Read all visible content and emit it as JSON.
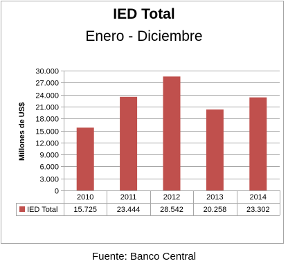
{
  "header": {
    "title": "IED Total",
    "subtitle": "Enero - Diciembre"
  },
  "footer": {
    "source": "Fuente: Banco Central"
  },
  "colors": {
    "bar": "#c0504d",
    "grid": "#a6a6a6",
    "border": "#a6a6a6"
  },
  "chart_data": {
    "type": "bar",
    "title": "IED Total",
    "subtitle": "Enero - Diciembre",
    "xlabel": "",
    "ylabel": "Millones de US$",
    "categories": [
      "2010",
      "2011",
      "2012",
      "2013",
      "2014"
    ],
    "series": [
      {
        "name": "IED Total",
        "values": [
          15725,
          23444,
          28542,
          20258,
          23302
        ],
        "labels": [
          "15.725",
          "23.444",
          "28.542",
          "20.258",
          "23.302"
        ]
      }
    ],
    "ylim": [
      0,
      30000
    ],
    "yticks": [
      0,
      3000,
      6000,
      9000,
      12000,
      15000,
      18000,
      21000,
      24000,
      27000,
      30000
    ],
    "ytick_labels": [
      "0",
      "3.000",
      "6.000",
      "9.000",
      "12.000",
      "15.000",
      "18.000",
      "21.000",
      "24.000",
      "27.000",
      "30.000"
    ],
    "grid": true,
    "legend": "data-table"
  }
}
